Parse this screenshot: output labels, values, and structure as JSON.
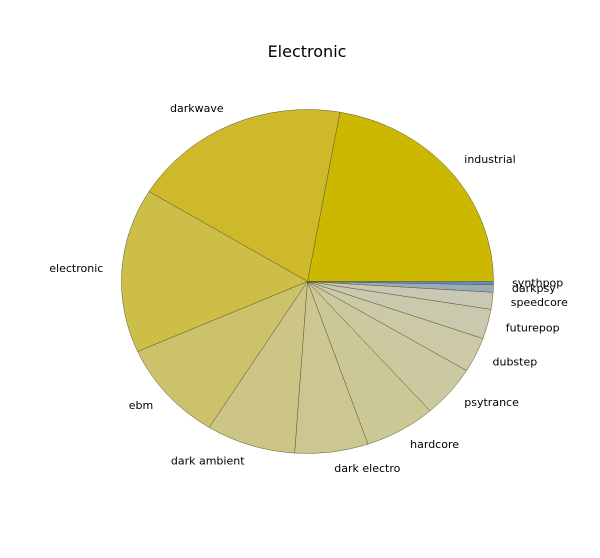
{
  "chart_data": {
    "type": "pie",
    "title": "Electronic",
    "start_angle_deg": 0,
    "direction": "counterclockwise",
    "slices": [
      {
        "label": "industrial",
        "value": 22.3,
        "color": "#ccb800"
      },
      {
        "label": "darkwave",
        "value": 19.1,
        "color": "#cdb92a"
      },
      {
        "label": "electronic",
        "value": 15.5,
        "color": "#cdbe48"
      },
      {
        "label": "ebm",
        "value": 9.5,
        "color": "#cdc26c"
      },
      {
        "label": "dark ambient",
        "value": 7.8,
        "color": "#cdc586"
      },
      {
        "label": "dark electro",
        "value": 6.4,
        "color": "#ccc692"
      },
      {
        "label": "hardcore",
        "value": 6.2,
        "color": "#ccc896"
      },
      {
        "label": "psytrance",
        "value": 4.9,
        "color": "#cbc99f"
      },
      {
        "label": "dubstep",
        "value": 3.3,
        "color": "#cbc9a6"
      },
      {
        "label": "futurepop",
        "value": 2.8,
        "color": "#cac8ad"
      },
      {
        "label": "speedcore",
        "value": 1.6,
        "color": "#c9c8b5"
      },
      {
        "label": "darkpsy",
        "value": 0.7,
        "color": "#9aaab8"
      },
      {
        "label": "synthpop",
        "value": 0.3,
        "color": "#5d8fbf"
      }
    ],
    "edge_color": "#5a5a30"
  }
}
